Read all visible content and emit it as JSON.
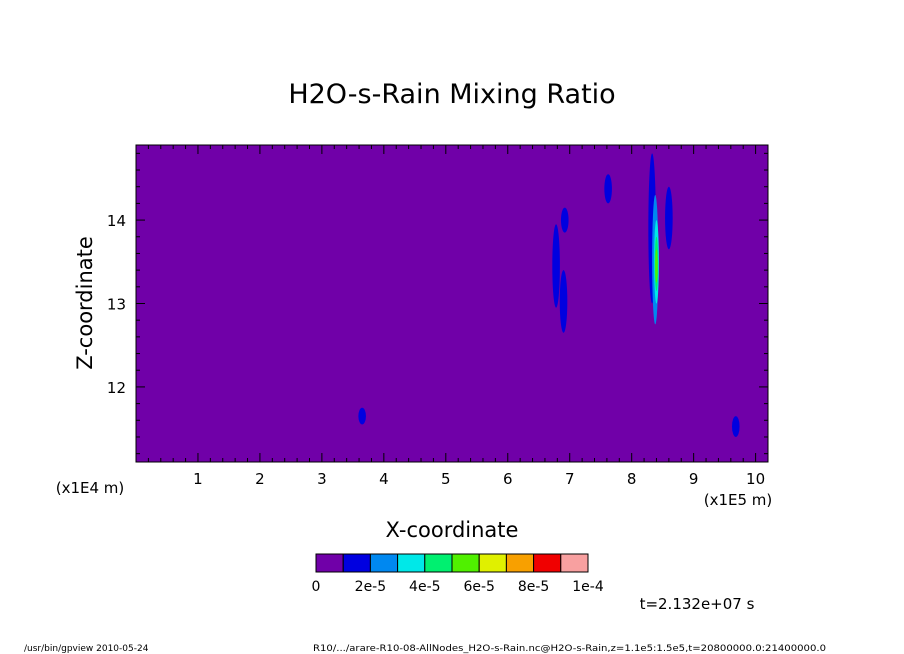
{
  "chart_data": {
    "type": "heatmap",
    "title": "H2O-s-Rain Mixing Ratio",
    "xlabel": "X-coordinate",
    "ylabel": "Z-coordinate",
    "x_scale_label": "(x1E5 m)",
    "y_scale_label": "(x1E4 m)",
    "xlim": [
      0,
      10.2
    ],
    "ylim": [
      11.1,
      14.9
    ],
    "x_ticks": [
      "1",
      "2",
      "3",
      "4",
      "5",
      "6",
      "7",
      "8",
      "9",
      "10"
    ],
    "y_ticks": [
      "12",
      "13",
      "14"
    ],
    "background_color": "#7000a8",
    "colorbar": {
      "colors": [
        "#7000a8",
        "#0000e0",
        "#0088f0",
        "#00e8e8",
        "#00f070",
        "#50f000",
        "#e0f000",
        "#f8a000",
        "#f00000",
        "#f8a0a0"
      ],
      "labels": [
        "0",
        "2e-5",
        "4e-5",
        "6e-5",
        "8e-5",
        "1e-4"
      ]
    },
    "features": [
      {
        "x": 3.65,
        "z_min": 11.55,
        "z_max": 11.75,
        "level": 1
      },
      {
        "x": 6.78,
        "z_min": 12.95,
        "z_max": 13.95,
        "level": 1
      },
      {
        "x": 6.9,
        "z_min": 12.65,
        "z_max": 13.4,
        "level": 1
      },
      {
        "x": 6.92,
        "z_min": 13.85,
        "z_max": 14.15,
        "level": 1
      },
      {
        "x": 7.62,
        "z_min": 14.2,
        "z_max": 14.55,
        "level": 1
      },
      {
        "x": 8.33,
        "z_min": 13.0,
        "z_max": 14.8,
        "level": 1
      },
      {
        "x": 8.38,
        "z_min": 12.75,
        "z_max": 14.3,
        "level": 2
      },
      {
        "x": 8.4,
        "z_min": 13.0,
        "z_max": 14.0,
        "level": 3
      },
      {
        "x": 8.4,
        "z_min": 13.15,
        "z_max": 13.8,
        "level": 4
      },
      {
        "x": 8.4,
        "z_min": 13.25,
        "z_max": 13.65,
        "level": 5
      },
      {
        "x": 8.6,
        "z_min": 13.65,
        "z_max": 14.4,
        "level": 1
      },
      {
        "x": 9.68,
        "z_min": 11.4,
        "z_max": 11.65,
        "level": 1
      }
    ]
  },
  "time_label": "t=2.132e+07 s",
  "footer": {
    "left": "/usr/bin/gpview  2010-05-24",
    "right": "R10/.../arare-R10-08-AllNodes_H2O-s-Rain.nc@H2O-s-Rain,z=1.1e5:1.5e5,t=20800000.0:21400000.0"
  }
}
